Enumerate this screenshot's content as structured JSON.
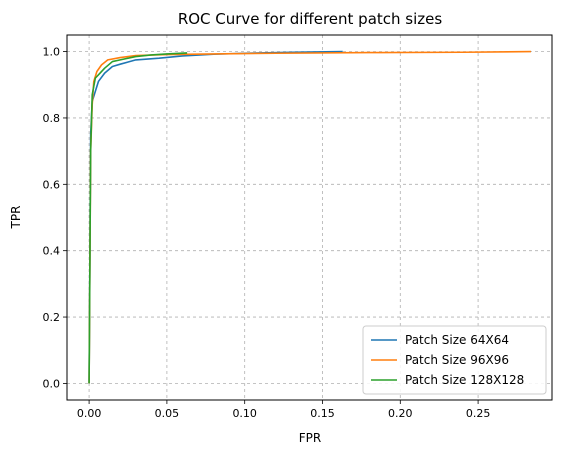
{
  "chart_data": {
    "type": "line",
    "title": "ROC Curve for different patch sizes",
    "xlabel": "FPR",
    "ylabel": "TPR",
    "xlim": [
      -0.0142,
      0.2975
    ],
    "ylim": [
      -0.05,
      1.05
    ],
    "xticks": [
      0.0,
      0.05,
      0.1,
      0.15,
      0.2,
      0.25
    ],
    "xtick_labels": [
      "0.00",
      "0.05",
      "0.10",
      "0.15",
      "0.20",
      "0.25"
    ],
    "yticks": [
      0.0,
      0.2,
      0.4,
      0.6,
      0.8,
      1.0
    ],
    "ytick_labels": [
      "0.0",
      "0.2",
      "0.4",
      "0.6",
      "0.8",
      "1.0"
    ],
    "grid": true,
    "legend_position": "lower-right",
    "series": [
      {
        "name": "Patch Size 64X64",
        "color": "#1f77b4",
        "x": [
          0.0,
          0.001,
          0.002,
          0.004,
          0.006,
          0.01,
          0.015,
          0.02,
          0.03,
          0.045,
          0.06,
          0.08,
          0.1,
          0.13,
          0.163
        ],
        "y": [
          0.0,
          0.75,
          0.85,
          0.88,
          0.91,
          0.935,
          0.955,
          0.962,
          0.975,
          0.98,
          0.987,
          0.992,
          0.995,
          0.998,
          1.0
        ]
      },
      {
        "name": "Patch Size 96X96",
        "color": "#ff7f0e",
        "x": [
          0.0,
          0.001,
          0.002,
          0.003,
          0.005,
          0.008,
          0.012,
          0.02,
          0.03,
          0.05,
          0.08,
          0.12,
          0.18,
          0.24,
          0.284
        ],
        "y": [
          0.0,
          0.7,
          0.84,
          0.91,
          0.94,
          0.96,
          0.975,
          0.982,
          0.988,
          0.991,
          0.993,
          0.995,
          0.997,
          0.998,
          1.0
        ]
      },
      {
        "name": "Patch Size 128X128",
        "color": "#2ca02c",
        "x": [
          0.0,
          0.001,
          0.002,
          0.004,
          0.007,
          0.01,
          0.015,
          0.02,
          0.03,
          0.04,
          0.05,
          0.063
        ],
        "y": [
          0.0,
          0.7,
          0.87,
          0.92,
          0.935,
          0.95,
          0.97,
          0.975,
          0.985,
          0.99,
          0.993,
          0.996
        ]
      }
    ]
  }
}
